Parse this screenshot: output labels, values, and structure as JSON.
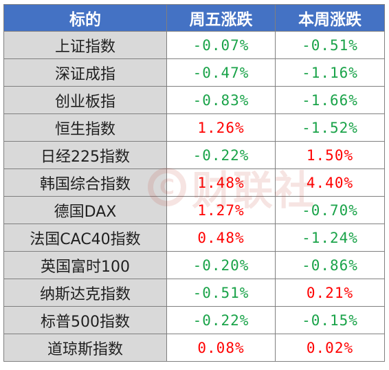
{
  "table": {
    "headers": [
      "标的",
      "周五涨跌",
      "本周涨跌"
    ],
    "rows": [
      {
        "name": "上证指数",
        "friday": "-0.07%",
        "week": "-0.51%",
        "friday_dir": "neg",
        "week_dir": "neg"
      },
      {
        "name": "深证成指",
        "friday": "-0.47%",
        "week": "-1.16%",
        "friday_dir": "neg",
        "week_dir": "neg"
      },
      {
        "name": "创业板指",
        "friday": "-0.83%",
        "week": "-1.66%",
        "friday_dir": "neg",
        "week_dir": "neg"
      },
      {
        "name": "恒生指数",
        "friday": "1.26%",
        "week": "-1.52%",
        "friday_dir": "pos",
        "week_dir": "neg"
      },
      {
        "name": "日经225指数",
        "friday": "-0.22%",
        "week": "1.50%",
        "friday_dir": "neg",
        "week_dir": "pos"
      },
      {
        "name": "韩国综合指数",
        "friday": "1.48%",
        "week": "4.40%",
        "friday_dir": "pos",
        "week_dir": "pos"
      },
      {
        "name": "德国DAX",
        "friday": "1.27%",
        "week": "-0.70%",
        "friday_dir": "pos",
        "week_dir": "neg"
      },
      {
        "name": "法国CAC40指数",
        "friday": "0.48%",
        "week": "-1.24%",
        "friday_dir": "pos",
        "week_dir": "neg"
      },
      {
        "name": "英国富时100",
        "friday": "-0.20%",
        "week": "-0.86%",
        "friday_dir": "neg",
        "week_dir": "neg"
      },
      {
        "name": "纳斯达克指数",
        "friday": "-0.51%",
        "week": "0.21%",
        "friday_dir": "neg",
        "week_dir": "pos"
      },
      {
        "name": "标普500指数",
        "friday": "-0.22%",
        "week": "-0.15%",
        "friday_dir": "neg",
        "week_dir": "neg"
      },
      {
        "name": "道琼斯指数",
        "friday": "0.08%",
        "week": "0.02%",
        "friday_dir": "pos",
        "week_dir": "pos"
      }
    ]
  },
  "watermark": {
    "logo_icon": "cailian-logo-icon",
    "text": "财联社"
  },
  "colors": {
    "header_bg": "#4472c4",
    "name_bg": "#d9d9d9",
    "negative": "#1aa349",
    "positive": "#ff0000"
  }
}
